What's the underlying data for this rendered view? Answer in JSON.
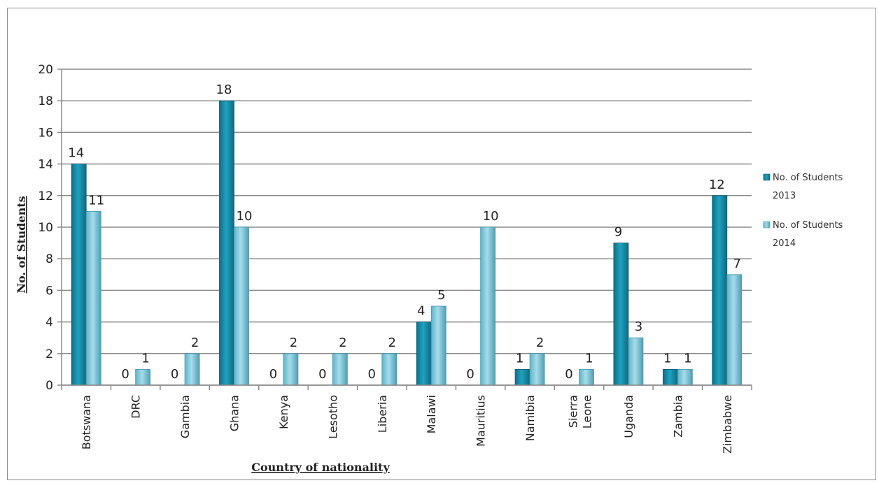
{
  "chart_data": {
    "type": "bar",
    "title": "",
    "xlabel": "Country of nationality",
    "ylabel": "No. of Students",
    "ylim": [
      0,
      20
    ],
    "yticks": [
      0,
      2,
      4,
      6,
      8,
      10,
      12,
      14,
      16,
      18,
      20
    ],
    "grid": true,
    "legend_position": "right",
    "categories": [
      "Botswana",
      "DRC",
      "Gambia",
      "Ghana",
      "Kenya",
      "Lesotho",
      "Liberia",
      "Malawi",
      "Mauritius",
      "Namibia",
      "Sierra Leone",
      "Uganda",
      "Zambia",
      "Zimbabwe"
    ],
    "series": [
      {
        "name": "No. of Students 2013",
        "legend_lines": [
          "No. of Students",
          "2013"
        ],
        "color": "#1a8fab",
        "values": [
          14,
          0,
          0,
          18,
          0,
          0,
          0,
          4,
          0,
          1,
          0,
          9,
          1,
          12
        ]
      },
      {
        "name": "No. of Students 2014",
        "legend_lines": [
          "No. of Students",
          "2014"
        ],
        "color": "#7ccbe0",
        "values": [
          11,
          1,
          2,
          10,
          2,
          2,
          2,
          5,
          10,
          2,
          1,
          3,
          1,
          7
        ]
      }
    ]
  }
}
